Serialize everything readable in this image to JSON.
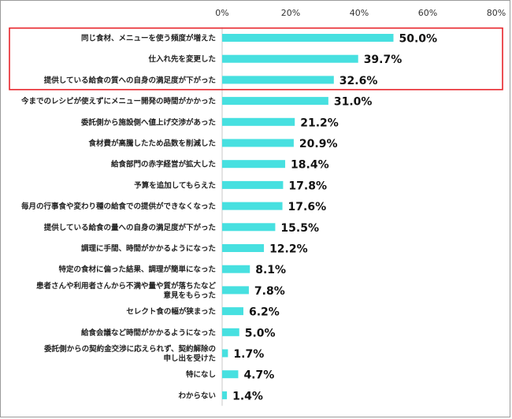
{
  "chart_data": {
    "type": "bar",
    "orientation": "horizontal",
    "title": "",
    "xlabel": "",
    "ylabel": "",
    "xlim": [
      0,
      80
    ],
    "x_ticks": [
      "0%",
      "20%",
      "40%",
      "60%",
      "80%"
    ],
    "x_tick_position": "top",
    "grid": false,
    "legend": "none",
    "bar_color": "#47e0e0",
    "highlight_color": "#e8252b",
    "highlighted_categories": [
      0,
      1,
      2
    ],
    "categories": [
      [
        "同じ食材、メニューを使う頻度が増えた"
      ],
      [
        "仕入れ先を変更した"
      ],
      [
        "提供している給食の質への自身の満足度が下がった"
      ],
      [
        "今までのレシピが使えずにメニュー開発の時間がかかった"
      ],
      [
        "委託側から施設側へ値上げ交渉があった"
      ],
      [
        "食材費が高騰したため品数を削減した"
      ],
      [
        "給食部門の赤字経営が拡大した"
      ],
      [
        "予算を追加してもらえた"
      ],
      [
        "毎月の行事食や変わり種の給食での提供ができなくなった"
      ],
      [
        "提供している給食の量への自身の満足度が下がった"
      ],
      [
        "調理に手間、時間がかかるようになった"
      ],
      [
        "特定の食材に偏った結果、調理が簡単になった"
      ],
      [
        "患者さんや利用者さんから不満や量や質が落ちたなど",
        "意見をもらった"
      ],
      [
        "セレクト食の幅が狭まった"
      ],
      [
        "給食会議など時間がかかるようになった"
      ],
      [
        "委託側からの契約金交渉に応えられず、契約解除の",
        "申し出を受けた"
      ],
      [
        "特になし"
      ],
      [
        "わからない"
      ]
    ],
    "values": [
      50.0,
      39.7,
      32.6,
      31.0,
      21.2,
      20.9,
      18.4,
      17.8,
      17.6,
      15.5,
      12.2,
      8.1,
      7.8,
      6.2,
      5.0,
      1.7,
      4.7,
      1.4
    ],
    "value_labels": [
      "50.0%",
      "39.7%",
      "32.6%",
      "31.0%",
      "21.2%",
      "20.9%",
      "18.4%",
      "17.8%",
      "17.6%",
      "15.5%",
      "12.2%",
      "8.1%",
      "7.8%",
      "6.2%",
      "5.0%",
      "1.7%",
      "4.7%",
      "1.4%"
    ]
  }
}
